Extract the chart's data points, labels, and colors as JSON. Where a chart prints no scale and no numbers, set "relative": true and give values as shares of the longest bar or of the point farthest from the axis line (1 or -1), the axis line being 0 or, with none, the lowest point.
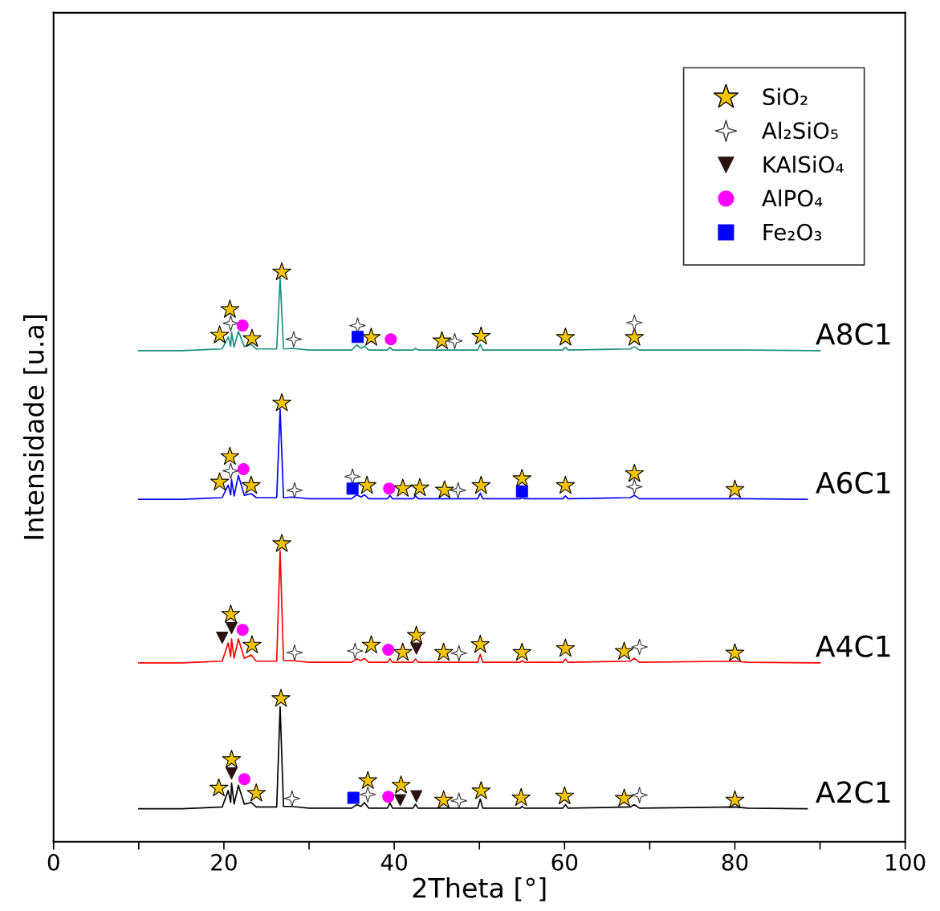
{
  "chart_data": {
    "type": "line",
    "relative": true,
    "xlabel": "2Theta [°]",
    "ylabel": "Intensidade [u.a]",
    "xlim": [
      0,
      100
    ],
    "xticks": [
      0,
      {
        "value": 10,
        "label": null
      },
      20,
      {
        "value": 30,
        "label": null
      },
      40,
      {
        "value": 50,
        "label": null
      },
      60,
      {
        "value": 70,
        "label": null
      },
      80,
      {
        "value": 90,
        "label": null
      },
      100
    ],
    "legend": "top right",
    "grid": false,
    "tick_labels": "x",
    "series": [
      {
        "name": "A8C1",
        "color": "#1a8f80",
        "x": [
          10,
          15,
          19.8,
          20.5,
          20.8,
          20.9,
          21.2,
          21.7,
          22.4,
          23.2,
          23.8,
          26.2,
          26.6,
          27.0,
          28.0,
          30,
          35.0,
          35.6,
          36.1,
          36.5,
          37,
          39.2,
          39.5,
          39.8,
          42.2,
          42.5,
          42.8,
          49.8,
          50.1,
          50.4,
          54.8,
          55,
          55.3,
          59.8,
          60.1,
          60.4,
          67.7,
          68.2,
          68.8,
          80,
          81.5,
          90
        ],
        "values": [
          0.862,
          0.862,
          0.865,
          0.886,
          0.87,
          0.894,
          0.868,
          0.896,
          0.869,
          0.873,
          0.865,
          0.865,
          0.99,
          0.865,
          0.866,
          0.863,
          0.863,
          0.872,
          0.866,
          0.87,
          0.863,
          0.863,
          0.868,
          0.863,
          0.863,
          0.866,
          0.863,
          0.863,
          0.873,
          0.863,
          0.863,
          0.863,
          0.863,
          0.863,
          0.868,
          0.863,
          0.865,
          0.869,
          0.863,
          0.863,
          0.863,
          0.862
        ]
      },
      {
        "name": "A6C1",
        "color": "#0000ff",
        "x": [
          10,
          15,
          19.8,
          20.5,
          20.8,
          20.9,
          21.2,
          21.7,
          22.4,
          23.2,
          23.8,
          26.2,
          26.6,
          27.0,
          28.0,
          30,
          35.0,
          35.6,
          36.1,
          36.5,
          37,
          39.2,
          39.5,
          39.8,
          42.2,
          42.5,
          42.8,
          49.8,
          50.1,
          50.4,
          54.8,
          55,
          55.3,
          59.8,
          60.1,
          60.4,
          67.7,
          68.2,
          68.8,
          80,
          81.5,
          88.5
        ],
        "values": [
          0.601,
          0.601,
          0.604,
          0.626,
          0.609,
          0.636,
          0.607,
          0.643,
          0.608,
          0.611,
          0.604,
          0.604,
          0.759,
          0.604,
          0.605,
          0.602,
          0.602,
          0.609,
          0.605,
          0.609,
          0.602,
          0.602,
          0.608,
          0.602,
          0.602,
          0.607,
          0.602,
          0.602,
          0.612,
          0.602,
          0.602,
          0.604,
          0.602,
          0.602,
          0.607,
          0.602,
          0.604,
          0.608,
          0.602,
          0.602,
          0.602,
          0.601
        ]
      },
      {
        "name": "A4C1",
        "color": "#ff0000",
        "x": [
          10,
          15,
          19.8,
          20.5,
          20.8,
          20.9,
          21.2,
          21.7,
          22.4,
          23.2,
          23.8,
          26.2,
          26.6,
          27.0,
          28.0,
          30,
          35.0,
          35.6,
          36.1,
          36.5,
          37,
          39.2,
          39.5,
          39.8,
          42.2,
          42.5,
          42.8,
          49.8,
          50.1,
          50.4,
          54.8,
          55,
          55.3,
          59.8,
          60.1,
          60.4,
          67.7,
          68.2,
          68.8,
          80,
          81.5,
          90
        ],
        "values": [
          0.314,
          0.314,
          0.317,
          0.349,
          0.325,
          0.356,
          0.322,
          0.356,
          0.322,
          0.328,
          0.317,
          0.317,
          0.511,
          0.318,
          0.318,
          0.315,
          0.315,
          0.321,
          0.318,
          0.322,
          0.315,
          0.315,
          0.321,
          0.315,
          0.315,
          0.321,
          0.315,
          0.315,
          0.329,
          0.315,
          0.315,
          0.318,
          0.315,
          0.315,
          0.321,
          0.315,
          0.317,
          0.322,
          0.315,
          0.317,
          0.315,
          0.314
        ]
      },
      {
        "name": "A2C1",
        "color": "#000000",
        "x": [
          10,
          15,
          19.8,
          20.5,
          20.8,
          20.9,
          21.2,
          21.7,
          22.4,
          23.2,
          23.8,
          26.2,
          26.6,
          27.0,
          28.0,
          30,
          35.0,
          35.6,
          36.1,
          36.5,
          37,
          39.2,
          39.5,
          39.8,
          42.2,
          42.5,
          42.8,
          49.8,
          50.1,
          50.4,
          54.8,
          55,
          55.3,
          59.8,
          60.1,
          60.4,
          67.7,
          68.2,
          68.8,
          80,
          81.5,
          88.5
        ],
        "values": [
          0.058,
          0.058,
          0.061,
          0.09,
          0.069,
          0.103,
          0.066,
          0.099,
          0.066,
          0.069,
          0.061,
          0.061,
          0.237,
          0.062,
          0.062,
          0.059,
          0.059,
          0.065,
          0.062,
          0.069,
          0.059,
          0.059,
          0.068,
          0.059,
          0.059,
          0.066,
          0.059,
          0.059,
          0.075,
          0.059,
          0.059,
          0.062,
          0.059,
          0.059,
          0.065,
          0.059,
          0.061,
          0.065,
          0.059,
          0.061,
          0.059,
          0.058
        ]
      },
      {
        "name": "SiO₂",
        "type": "scatter",
        "marker": "star",
        "color": "#f5c400",
        "x": [
          19.5,
          20.7,
          23.3,
          26.8,
          37.3,
          45.6,
          50.2,
          60.1,
          68.2,
          19.5,
          20.7,
          23.2,
          26.8,
          36.8,
          41.0,
          43.0,
          45.9,
          50.2,
          55.0,
          60.1,
          68.2,
          80.0,
          20.8,
          23.3,
          26.8,
          37.3,
          41.0,
          42.6,
          45.8,
          50.1,
          55.0,
          60.1,
          67.0,
          80.0,
          19.4,
          20.9,
          23.8,
          26.7,
          36.9,
          40.8,
          45.8,
          50.2,
          54.9,
          60.0,
          67.0,
          80.0
        ],
        "values": [
          0.889,
          0.934,
          0.883,
          1.0,
          0.885,
          0.879,
          0.887,
          0.885,
          0.885,
          0.631,
          0.676,
          0.625,
          0.77,
          0.625,
          0.62,
          0.621,
          0.617,
          0.625,
          0.637,
          0.625,
          0.646,
          0.618,
          0.399,
          0.345,
          0.523,
          0.345,
          0.332,
          0.362,
          0.332,
          0.346,
          0.332,
          0.339,
          0.334,
          0.331,
          0.094,
          0.144,
          0.085,
          0.251,
          0.107,
          0.099,
          0.073,
          0.089,
          0.077,
          0.08,
          0.076,
          0.073
        ]
      },
      {
        "name": "Al₂SiO₅",
        "type": "scatter",
        "marker": "cross",
        "color": "#ffffff",
        "x": [
          20.8,
          28.2,
          35.7,
          47.1,
          68.2,
          20.8,
          28.3,
          35.1,
          47.5,
          68.2,
          28.3,
          35.4,
          47.6,
          68.8,
          28.0,
          36.9,
          47.6,
          68.8
        ],
        "values": [
          0.91,
          0.882,
          0.906,
          0.879,
          0.911,
          0.651,
          0.617,
          0.641,
          0.617,
          0.623,
          0.332,
          0.335,
          0.331,
          0.342,
          0.076,
          0.083,
          0.072,
          0.082
        ]
      },
      {
        "name": "KAlSiO₄",
        "type": "scatter",
        "marker": "triangle",
        "color": "#2b1210",
        "x": [
          19.8,
          20.9,
          42.6,
          20.9,
          40.7,
          42.6
        ],
        "values": [
          0.358,
          0.375,
          0.339,
          0.12,
          0.073,
          0.08
        ]
      },
      {
        "name": "AlPO₄",
        "type": "scatter",
        "marker": "circle",
        "color": "#ff00ff",
        "x": [
          22.2,
          39.6,
          22.3,
          39.4,
          22.2,
          39.3,
          22.4,
          39.3
        ],
        "values": [
          0.906,
          0.882,
          0.654,
          0.62,
          0.372,
          0.337,
          0.11,
          0.079
        ]
      },
      {
        "name": "Fe₂O₃",
        "type": "scatter",
        "marker": "square",
        "color": "#0000ff",
        "x": [
          35.7,
          35.1,
          55.0,
          35.2
        ],
        "values": [
          0.886,
          0.62,
          0.615,
          0.077
        ]
      }
    ]
  }
}
